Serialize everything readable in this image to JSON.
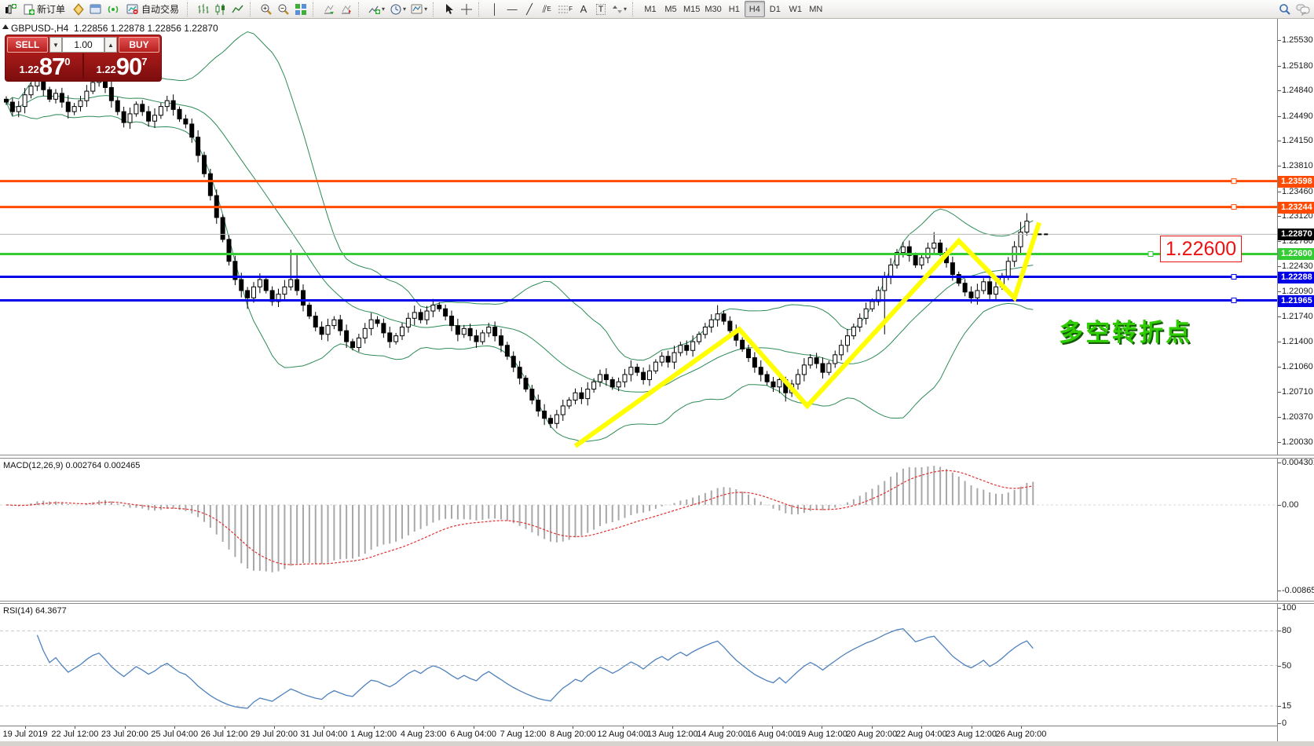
{
  "toolbar": {
    "new_order_label": "新订单",
    "autotrading_label": "自动交易",
    "timeframes": [
      "M1",
      "M5",
      "M15",
      "M30",
      "H1",
      "H4",
      "D1",
      "W1",
      "MN"
    ],
    "active_timeframe": "H4",
    "channel_letter": "E",
    "fibo_letter": "F",
    "text_letter": "A",
    "label_letter": "T"
  },
  "one_click": {
    "sell_label": "SELL",
    "buy_label": "BUY",
    "volume": "1.00",
    "sell_price_small": "1.22",
    "sell_price_big": "87",
    "sell_price_sup": "0",
    "buy_price_small": "1.22",
    "buy_price_big": "90",
    "buy_price_sup": "7"
  },
  "chart": {
    "symbol_period": "GBPUSD-,H4",
    "ohlc": {
      "open": "1.22856",
      "high": "1.22878",
      "low": "1.22856",
      "close": "1.22870"
    },
    "price_ticks": [
      "1.25530",
      "1.25180",
      "1.24840",
      "1.24490",
      "1.24150",
      "1.23810",
      "1.23460",
      "1.23120",
      "1.22780",
      "1.22430",
      "1.22090",
      "1.21740",
      "1.21400",
      "1.21060",
      "1.20710",
      "1.20370",
      "1.20030"
    ],
    "time_labels": [
      "19 Jul 2019",
      "22 Jul 12:00",
      "23 Jul 20:00",
      "25 Jul 04:00",
      "26 Jul 12:00",
      "29 Jul 20:00",
      "31 Jul 04:00",
      "1 Aug 12:00",
      "4 Aug 23:00",
      "6 Aug 04:00",
      "7 Aug 12:00",
      "8 Aug 20:00",
      "12 Aug 04:00",
      "13 Aug 12:00",
      "14 Aug 20:00",
      "16 Aug 04:00",
      "19 Aug 12:00",
      "20 Aug 20:00",
      "22 Aug 04:00",
      "23 Aug 12:00",
      "26 Aug 20:00"
    ],
    "hlines": [
      {
        "value": 1.23598,
        "label": "1.23598",
        "color": "#ff4a00"
      },
      {
        "value": 1.23244,
        "label": "1.23244",
        "color": "#ff4a00"
      },
      {
        "value": 1.226,
        "label": "1.22600",
        "color": "#33cc33"
      },
      {
        "value": 1.22288,
        "label": "1.22288",
        "color": "#0000e8"
      },
      {
        "value": 1.21965,
        "label": "1.21965",
        "color": "#0000e8"
      }
    ],
    "current_price": {
      "value": 1.2287,
      "label": "1.22870",
      "line_color": "#b8b8b8",
      "label_bg": "#000000"
    },
    "annotations": {
      "price_callout": "1.22600",
      "callout_color": "#ee1111",
      "cn_note": "多空转折点",
      "cn_color": "#2ecc00"
    },
    "bollinger_color": "#2e8b57",
    "candle_bull_fill": "#ffffff",
    "candle_bear_fill": "#000000",
    "zigzag_color": "#ffff00",
    "closes": [
      1.2468,
      1.2455,
      1.2462,
      1.2478,
      1.249,
      1.2497,
      1.2485,
      1.2472,
      1.248,
      1.2468,
      1.2455,
      1.2462,
      1.247,
      1.2483,
      1.2495,
      1.2502,
      1.2488,
      1.247,
      1.2455,
      1.244,
      1.2452,
      1.2465,
      1.2455,
      1.2442,
      1.245,
      1.2462,
      1.247,
      1.2458,
      1.2445,
      1.2438,
      1.242,
      1.2395,
      1.237,
      1.234,
      1.231,
      1.228,
      1.225,
      1.2225,
      1.221,
      1.22,
      1.2215,
      1.2225,
      1.221,
      1.2195,
      1.2205,
      1.2215,
      1.2225,
      1.221,
      1.219,
      1.2175,
      1.216,
      1.215,
      1.2162,
      1.217,
      1.2155,
      1.214,
      1.2132,
      1.2145,
      1.2158,
      1.217,
      1.2165,
      1.2152,
      1.214,
      1.2148,
      1.216,
      1.2172,
      1.218,
      1.217,
      1.2182,
      1.219,
      1.2185,
      1.2175,
      1.2162,
      1.215,
      1.2158,
      1.2148,
      1.214,
      1.2152,
      1.216,
      1.2148,
      1.2135,
      1.212,
      1.2105,
      1.209,
      1.2075,
      1.206,
      1.2045,
      1.2035,
      1.2028,
      1.204,
      1.2052,
      1.206,
      1.207,
      1.2062,
      1.2075,
      1.2085,
      1.2095,
      1.2088,
      1.2078,
      1.2085,
      1.2095,
      1.2105,
      1.2098,
      1.2088,
      1.21,
      1.2112,
      1.212,
      1.2112,
      1.2125,
      1.2135,
      1.2128,
      1.214,
      1.215,
      1.216,
      1.217,
      1.2178,
      1.2168,
      1.2155,
      1.2142,
      1.213,
      1.2118,
      1.2105,
      1.2095,
      1.2085,
      1.2078,
      1.2088,
      1.207,
      1.2082,
      1.2095,
      1.2108,
      1.2118,
      1.211,
      1.2098,
      1.211,
      1.2122,
      1.2135,
      1.2148,
      1.216,
      1.2172,
      1.2185,
      1.2195,
      1.221,
      1.2228,
      1.2245,
      1.2262,
      1.227,
      1.2258,
      1.2245,
      1.2255,
      1.2268,
      1.2275,
      1.2262,
      1.2248,
      1.2232,
      1.222,
      1.2208,
      1.22,
      1.221,
      1.2222,
      1.2205,
      1.2215,
      1.223,
      1.225,
      1.227,
      1.229,
      1.2305,
      1.2287
    ],
    "wick_overrides": {
      "15": {
        "h": 1.2515
      },
      "17": {
        "h": 1.252
      },
      "39": {
        "l": 1.2185
      },
      "46": {
        "h": 1.2266
      },
      "47": {
        "h": 1.226
      },
      "87": {
        "l": 1.2026
      },
      "88": {
        "l": 1.2022
      },
      "115": {
        "h": 1.219
      },
      "126": {
        "l": 1.2058
      },
      "142": {
        "l": 1.215
      },
      "150": {
        "h": 1.229
      },
      "164": {
        "h": 1.2304
      },
      "165": {
        "h": 1.2316
      }
    },
    "last_candle": [
      1.22856,
      1.22878,
      1.22856,
      1.2287
    ],
    "zigzag": [
      [
        92,
        1.1997
      ],
      [
        118.5,
        1.2157
      ],
      [
        129.5,
        1.2052
      ],
      [
        154,
        1.2278
      ],
      [
        163,
        1.22
      ],
      [
        167,
        1.2303
      ]
    ]
  },
  "macd": {
    "label": "MACD(12,26,9)",
    "value": "0.002764",
    "signal_value": "0.002465",
    "ticks": [
      {
        "label": "0.004301",
        "value": 0.004301
      },
      {
        "label": "0.00",
        "value": 0
      },
      {
        "label": "-0.008651",
        "value": -0.008651
      }
    ],
    "histogram_color": "#a8a8a8",
    "signal_color": "#e03030"
  },
  "rsi": {
    "label": "RSI(14)",
    "value": "64.3677",
    "ticks": [
      {
        "label": "100",
        "value": 100
      },
      {
        "label": "80",
        "value": 80
      },
      {
        "label": "50",
        "value": 50
      },
      {
        "label": "15",
        "value": 15
      },
      {
        "label": "0",
        "value": 0
      }
    ],
    "level_values": [
      80,
      50,
      15
    ],
    "line_color": "#4f81bd"
  }
}
